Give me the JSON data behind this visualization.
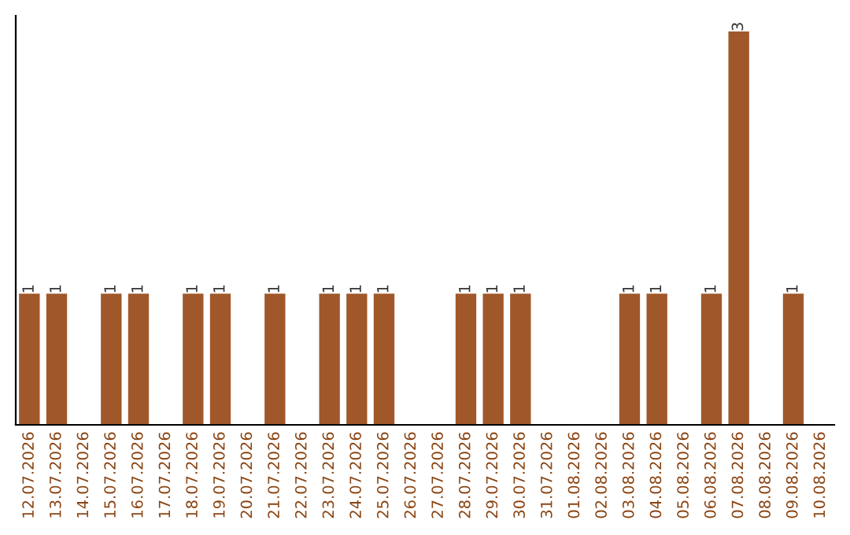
{
  "chart_data": {
    "type": "bar",
    "categories": [
      "12.07.2026",
      "13.07.2026",
      "14.07.2026",
      "15.07.2026",
      "16.07.2026",
      "17.07.2026",
      "18.07.2026",
      "19.07.2026",
      "20.07.2026",
      "21.07.2026",
      "22.07.2026",
      "23.07.2026",
      "24.07.2026",
      "25.07.2026",
      "26.07.2026",
      "27.07.2026",
      "28.07.2026",
      "29.07.2026",
      "30.07.2026",
      "31.07.2026",
      "01.08.2026",
      "02.08.2026",
      "03.08.2026",
      "04.08.2026",
      "05.08.2026",
      "06.08.2026",
      "07.08.2026",
      "08.08.2026",
      "09.08.2026",
      "10.08.2026"
    ],
    "values": [
      1,
      1,
      null,
      1,
      1,
      null,
      1,
      1,
      null,
      1,
      null,
      1,
      1,
      1,
      null,
      null,
      1,
      1,
      1,
      null,
      null,
      null,
      1,
      1,
      null,
      1,
      3,
      null,
      1,
      null
    ],
    "value_labels": [
      "1",
      "1",
      null,
      "1",
      "1",
      null,
      "1",
      "1",
      null,
      "1",
      null,
      "1",
      "1",
      "1",
      null,
      null,
      "1",
      "1",
      "1",
      null,
      null,
      null,
      "1",
      "1",
      null,
      "1",
      "3",
      null,
      "1",
      null
    ],
    "color": "#a0582a",
    "ylim": [
      0,
      3.12
    ],
    "tick_labels": "x",
    "grid": false,
    "legend": false
  }
}
